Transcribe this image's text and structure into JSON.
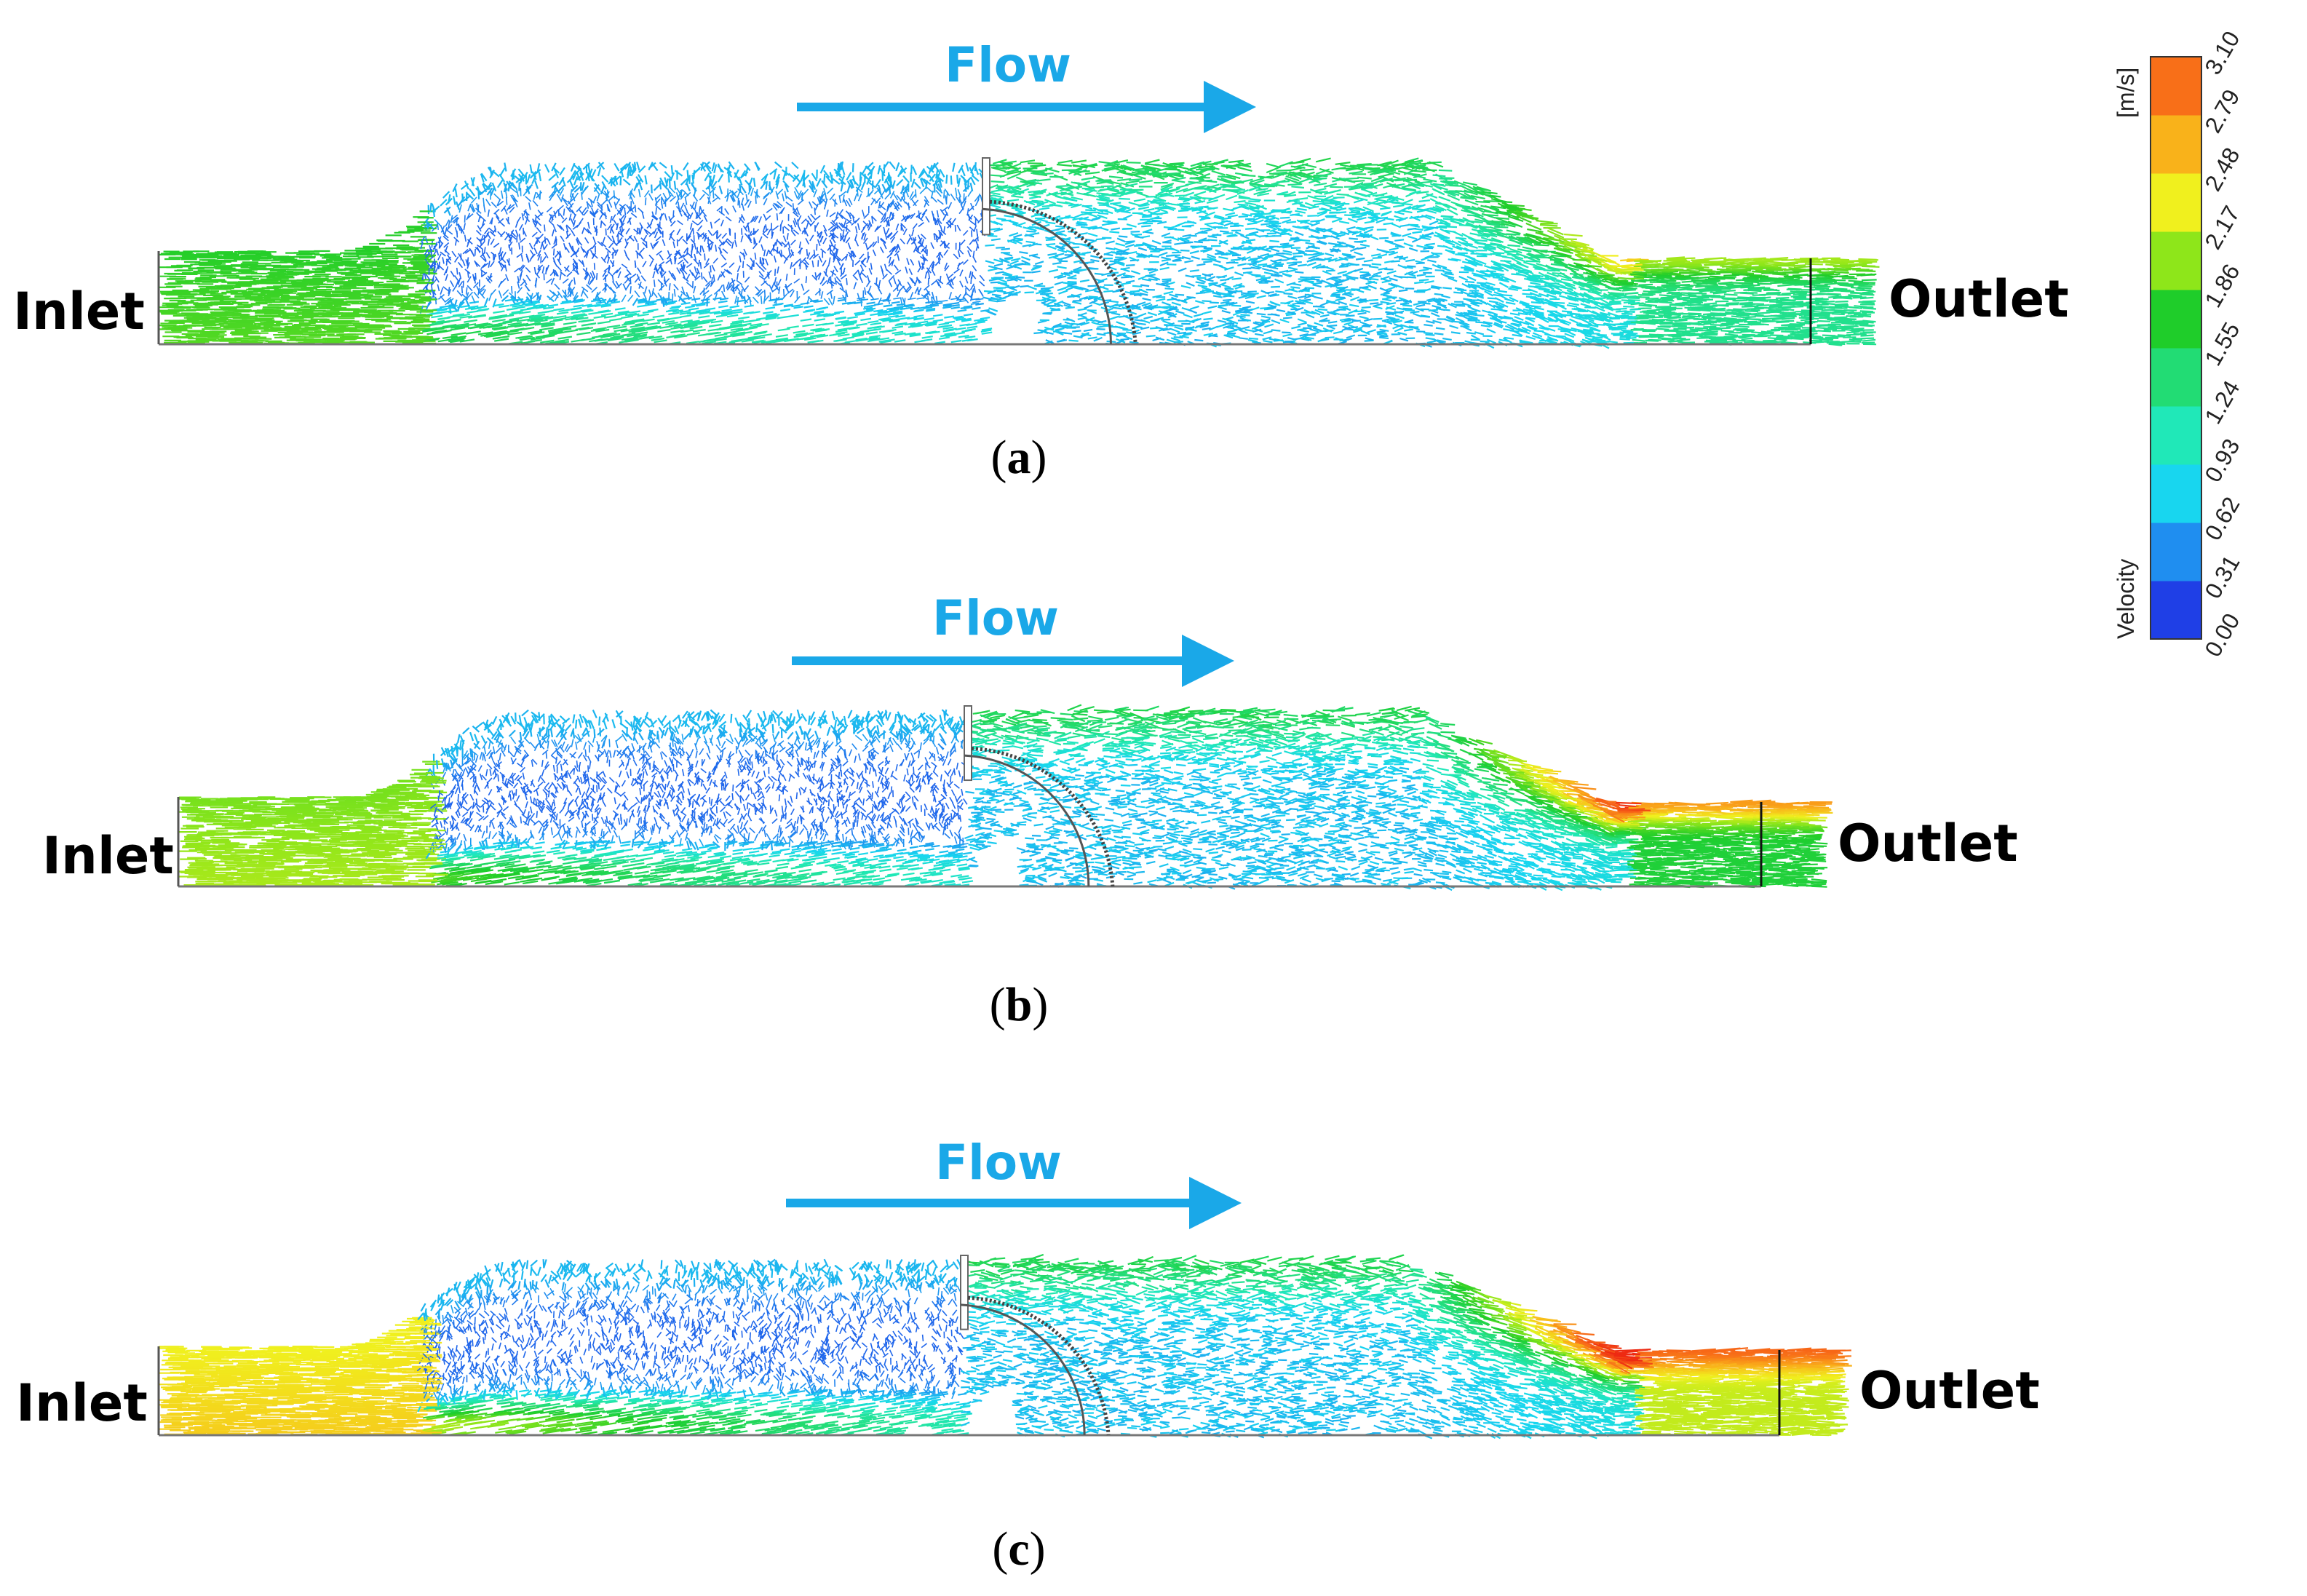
{
  "panels": [
    {
      "caption": "a",
      "flow_label": "Flow",
      "inlet_label": "Inlet",
      "outlet_label": "Outlet",
      "inlet_level": 1.7,
      "outlet_level": 1.25,
      "jet_level": 2.05
    },
    {
      "caption": "b",
      "flow_label": "Flow",
      "inlet_label": "Inlet",
      "outlet_label": "Outlet",
      "inlet_level": 1.95,
      "outlet_level": 1.65,
      "jet_level": 2.75
    },
    {
      "caption": "c",
      "flow_label": "Flow",
      "inlet_label": "Inlet",
      "outlet_label": "Outlet",
      "inlet_level": 2.35,
      "outlet_level": 2.25,
      "jet_level": 3.05
    }
  ],
  "colorbar": {
    "title": "Velocity",
    "unit": "[m/s]",
    "ticks": [
      "0.00",
      "0.31",
      "0.62",
      "0.93",
      "1.24",
      "1.55",
      "1.86",
      "2.17",
      "2.48",
      "2.79",
      "3.10"
    ],
    "min": 0.0,
    "max": 3.1,
    "colors": [
      "#1f3fe6",
      "#1f8ef0",
      "#18d6ef",
      "#20e8b8",
      "#22dc74",
      "#1fcd2a",
      "#8ee61a",
      "#f0f01e",
      "#f9b21a",
      "#f86f18",
      "#ee2a12"
    ]
  }
}
